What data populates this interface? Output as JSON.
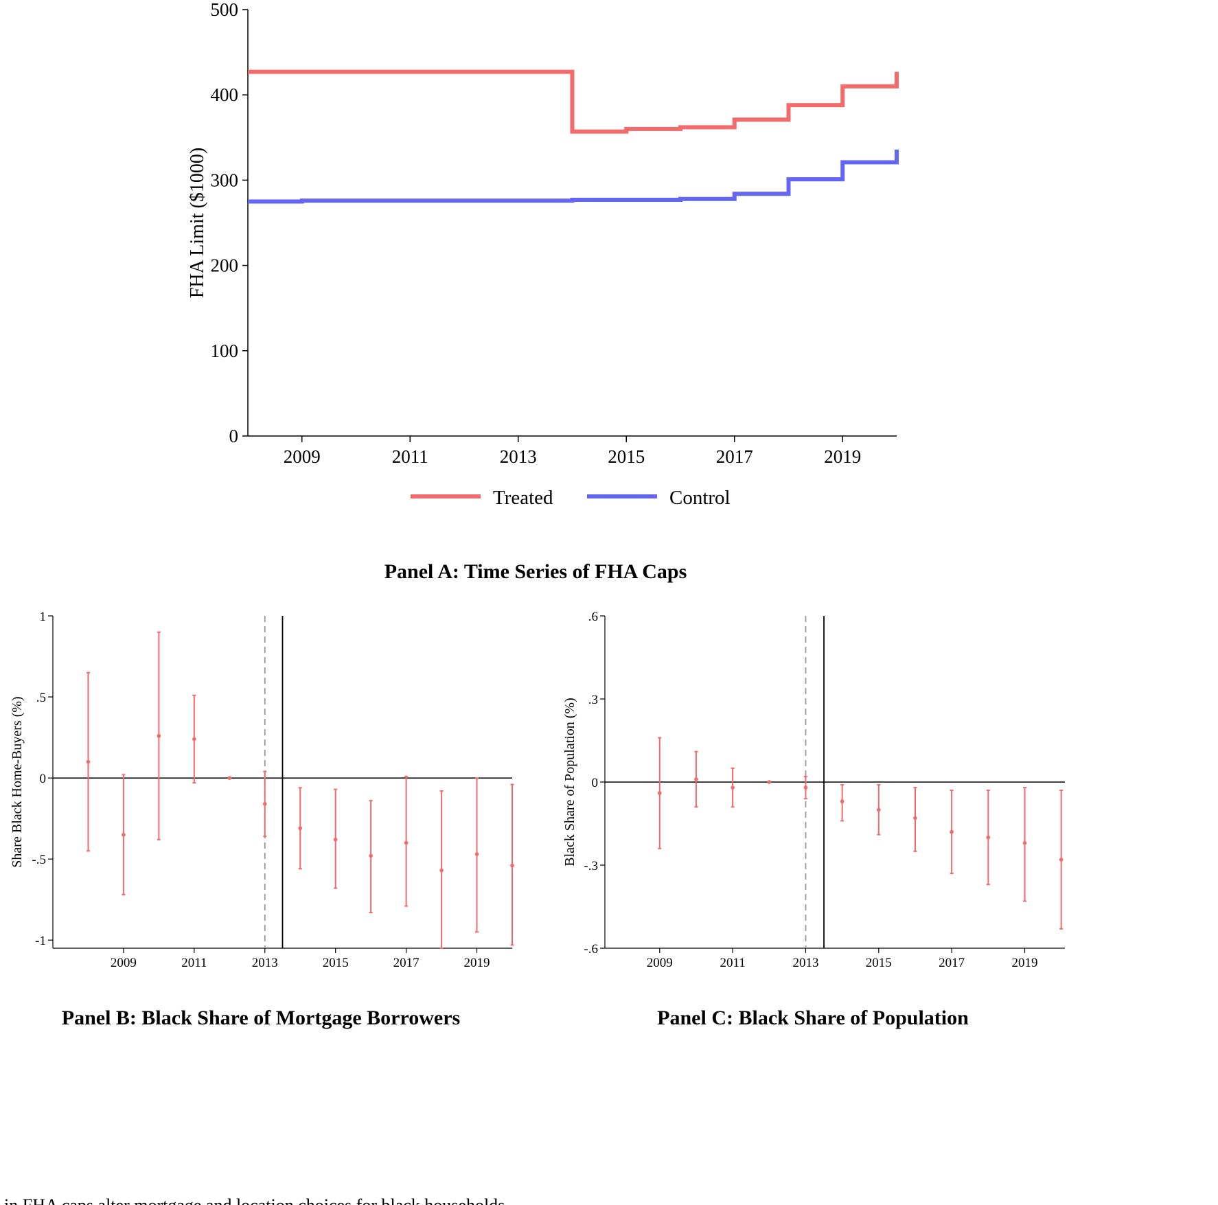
{
  "chart_data": [
    {
      "type": "line",
      "panel_title": "Panel A: Time Series of FHA Caps",
      "ylabel": "FHA Limit ($1000)",
      "xlabel": "",
      "xlim": [
        2008,
        2020
      ],
      "ylim": [
        0,
        500
      ],
      "xticks": [
        2009,
        2011,
        2013,
        2015,
        2017,
        2019
      ],
      "yticks": [
        0,
        100,
        200,
        300,
        400,
        500
      ],
      "legend_position": "bottom",
      "series": [
        {
          "name": "Treated",
          "color": "#f26a6a",
          "step": true,
          "x": [
            2008,
            2014,
            2015,
            2016,
            2017,
            2018,
            2019,
            2020
          ],
          "y": [
            427,
            357,
            360,
            362,
            371,
            388,
            410,
            427
          ]
        },
        {
          "name": "Control",
          "color": "#6565f4",
          "step": true,
          "x": [
            2008,
            2009,
            2014,
            2016,
            2017,
            2018,
            2019,
            2020
          ],
          "y": [
            275,
            276,
            277,
            278,
            284,
            301,
            321,
            336
          ]
        }
      ]
    },
    {
      "type": "scatter",
      "panel_title": "Panel B: Black Share of Mortgage Borrowers",
      "ylabel": "Share Black Home-Buyers (%)",
      "xlabel": "",
      "xlim": [
        2007,
        2020
      ],
      "ylim": [
        -1.05,
        1.0
      ],
      "xticks": [
        2009,
        2011,
        2013,
        2015,
        2017,
        2019
      ],
      "yticks": [
        1,
        0.5,
        0,
        -0.5,
        -1
      ],
      "ytick_labels": [
        "1",
        ".5",
        "0",
        "-.5",
        "-1"
      ],
      "reference_lines": {
        "zero_line": 0,
        "dashed_vline": 2013,
        "solid_vline": 2013.5
      },
      "color": "#f26a6a",
      "x": [
        2008,
        2009,
        2010,
        2011,
        2012,
        2013,
        2014,
        2015,
        2016,
        2017,
        2018,
        2019,
        2020
      ],
      "estimate": [
        0.1,
        -0.35,
        0.26,
        0.24,
        0.0,
        -0.16,
        -0.31,
        -0.38,
        -0.48,
        -0.4,
        -0.57,
        -0.47,
        -0.54
      ],
      "ci_low": [
        -0.45,
        -0.72,
        -0.38,
        -0.03,
        0.0,
        -0.36,
        -0.56,
        -0.68,
        -0.83,
        -0.79,
        -1.05,
        -0.95,
        -1.03
      ],
      "ci_high": [
        0.65,
        0.02,
        0.9,
        0.51,
        0.0,
        0.04,
        -0.06,
        -0.07,
        -0.14,
        0.01,
        -0.08,
        0.0,
        -0.04
      ]
    },
    {
      "type": "scatter",
      "panel_title": "Panel C: Black Share of Population",
      "ylabel": "Black Share of Population (%)",
      "xlabel": "",
      "xlim": [
        2007.5,
        2020.1
      ],
      "ylim": [
        -0.6,
        0.6
      ],
      "xticks": [
        2009,
        2011,
        2013,
        2015,
        2017,
        2019
      ],
      "yticks": [
        0.6,
        0.3,
        0,
        -0.3,
        -0.6
      ],
      "ytick_labels": [
        ".6",
        ".3",
        "0",
        "-.3",
        "-.6"
      ],
      "reference_lines": {
        "zero_line": 0,
        "dashed_vline": 2013,
        "solid_vline": 2013.5
      },
      "color": "#f26a6a",
      "x": [
        2009,
        2010,
        2011,
        2012,
        2013,
        2014,
        2015,
        2016,
        2017,
        2018,
        2019,
        2020
      ],
      "estimate": [
        -0.04,
        0.01,
        -0.02,
        0.0,
        -0.02,
        -0.07,
        -0.1,
        -0.13,
        -0.18,
        -0.2,
        -0.22,
        -0.28
      ],
      "ci_low": [
        -0.24,
        -0.09,
        -0.09,
        0.0,
        -0.06,
        -0.14,
        -0.19,
        -0.25,
        -0.33,
        -0.37,
        -0.43,
        -0.53
      ],
      "ci_high": [
        0.16,
        0.11,
        0.05,
        0.0,
        0.02,
        -0.01,
        -0.01,
        -0.02,
        -0.03,
        -0.03,
        -0.02,
        -0.03
      ]
    }
  ],
  "caption_text": "Changes in FHA caps alter mortgage and location choices for black households"
}
